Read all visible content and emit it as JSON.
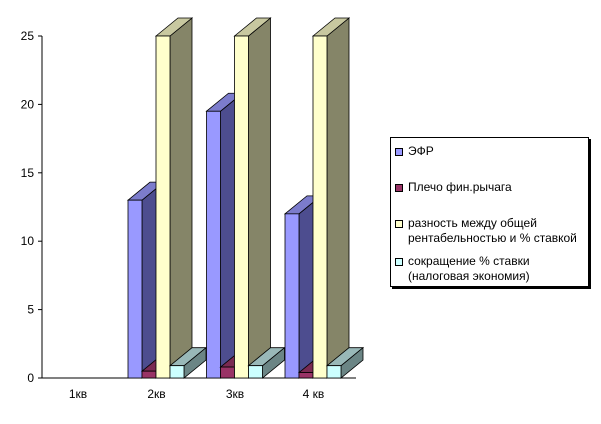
{
  "chart_data": {
    "type": "bar",
    "categories": [
      "1кв",
      "2кв",
      "3кв",
      "4 кв"
    ],
    "series": [
      {
        "name": "ЭФР",
        "values": [
          null,
          13,
          19.5,
          12
        ],
        "color": "#9999ff",
        "side_color": "#4d4d8f",
        "top_color": "#7c7ccc"
      },
      {
        "name": "Плечо фин.рычага",
        "values": [
          null,
          0.5,
          0.8,
          0.4
        ],
        "color": "#993366",
        "side_color": "#5a1e3c",
        "top_color": "#7a2a52"
      },
      {
        "name": "разность между общей\nрентабельностью и % ставкой",
        "values": [
          null,
          25,
          25,
          25
        ],
        "color": "#ffffcc",
        "side_color": "#858568",
        "top_color": "#c8c8a0"
      },
      {
        "name": "сокращение % ставки\n(налоговая экономия)",
        "values": [
          null,
          0.9,
          0.9,
          0.9
        ],
        "color": "#ccffff",
        "side_color": "#6b8585",
        "top_color": "#99b8b8"
      }
    ],
    "y_ticks": [
      "0",
      "5",
      "10",
      "15",
      "20",
      "25"
    ],
    "ylim": [
      0,
      25
    ],
    "grid": false,
    "legend_position": "right",
    "title": "",
    "xlabel": "",
    "ylabel": ""
  }
}
